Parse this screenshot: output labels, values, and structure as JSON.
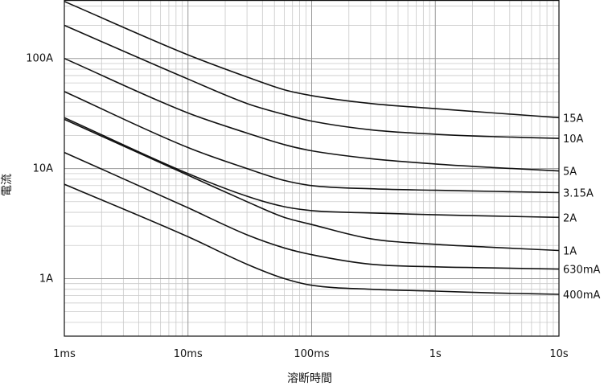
{
  "chart_data": {
    "type": "line",
    "x_scale": "log",
    "y_scale": "log",
    "xlabel": "溶断時間",
    "ylabel": "電流",
    "xlim": [
      0.001,
      10
    ],
    "ylim": [
      0.3,
      340
    ],
    "grid": true,
    "x_ticks": [
      {
        "value": 0.001,
        "label": "1ms"
      },
      {
        "value": 0.01,
        "label": "10ms"
      },
      {
        "value": 0.1,
        "label": "100ms"
      },
      {
        "value": 1,
        "label": "1s"
      },
      {
        "value": 10,
        "label": "10s"
      }
    ],
    "y_ticks": [
      {
        "value": 1,
        "label": "1A"
      },
      {
        "value": 10,
        "label": "10A"
      },
      {
        "value": 100,
        "label": "100A"
      }
    ],
    "series": [
      {
        "name": "15A",
        "points": [
          [
            0.001,
            330
          ],
          [
            0.01,
            108
          ],
          [
            0.03,
            68
          ],
          [
            0.06,
            52
          ],
          [
            0.1,
            46
          ],
          [
            0.3,
            39
          ],
          [
            1,
            35
          ],
          [
            3,
            32
          ],
          [
            10,
            29
          ]
        ]
      },
      {
        "name": "10A",
        "points": [
          [
            0.001,
            200
          ],
          [
            0.01,
            65
          ],
          [
            0.03,
            39
          ],
          [
            0.06,
            31
          ],
          [
            0.1,
            27
          ],
          [
            0.3,
            22.5
          ],
          [
            1,
            20.5
          ],
          [
            3,
            19.5
          ],
          [
            10,
            18.8
          ]
        ]
      },
      {
        "name": "5A",
        "points": [
          [
            0.001,
            100
          ],
          [
            0.01,
            32
          ],
          [
            0.03,
            21
          ],
          [
            0.06,
            16.5
          ],
          [
            0.1,
            14.5
          ],
          [
            0.3,
            12.3
          ],
          [
            1,
            11
          ],
          [
            3,
            10.2
          ],
          [
            10,
            9.5
          ]
        ]
      },
      {
        "name": "3.15A",
        "points": [
          [
            0.001,
            50
          ],
          [
            0.01,
            15.5
          ],
          [
            0.03,
            10
          ],
          [
            0.06,
            7.8
          ],
          [
            0.1,
            7
          ],
          [
            0.3,
            6.55
          ],
          [
            1,
            6.35
          ],
          [
            3,
            6.2
          ],
          [
            10,
            6.05
          ]
        ]
      },
      {
        "name": "2A",
        "points": [
          [
            0.001,
            29
          ],
          [
            0.01,
            9
          ],
          [
            0.03,
            5.6
          ],
          [
            0.06,
            4.5
          ],
          [
            0.1,
            4.15
          ],
          [
            0.3,
            3.95
          ],
          [
            1,
            3.8
          ],
          [
            3,
            3.7
          ],
          [
            10,
            3.6
          ]
        ]
      },
      {
        "name": "1A",
        "points": [
          [
            0.001,
            28
          ],
          [
            0.01,
            8.7
          ],
          [
            0.03,
            5
          ],
          [
            0.06,
            3.6
          ],
          [
            0.1,
            3.1
          ],
          [
            0.3,
            2.3
          ],
          [
            1,
            2.05
          ],
          [
            3,
            1.92
          ],
          [
            10,
            1.8
          ]
        ]
      },
      {
        "name": "630mA",
        "points": [
          [
            0.001,
            14
          ],
          [
            0.01,
            4.4
          ],
          [
            0.03,
            2.5
          ],
          [
            0.06,
            1.9
          ],
          [
            0.1,
            1.65
          ],
          [
            0.3,
            1.35
          ],
          [
            1,
            1.28
          ],
          [
            3,
            1.25
          ],
          [
            10,
            1.22
          ]
        ]
      },
      {
        "name": "400mA",
        "points": [
          [
            0.001,
            7.2
          ],
          [
            0.01,
            2.4
          ],
          [
            0.03,
            1.35
          ],
          [
            0.06,
            1.0
          ],
          [
            0.1,
            0.87
          ],
          [
            0.3,
            0.8
          ],
          [
            1,
            0.77
          ],
          [
            3,
            0.74
          ],
          [
            10,
            0.72
          ]
        ]
      }
    ],
    "colors": {
      "line": "#111111",
      "grid": "#c9c9c9",
      "frame": "#111111"
    }
  }
}
